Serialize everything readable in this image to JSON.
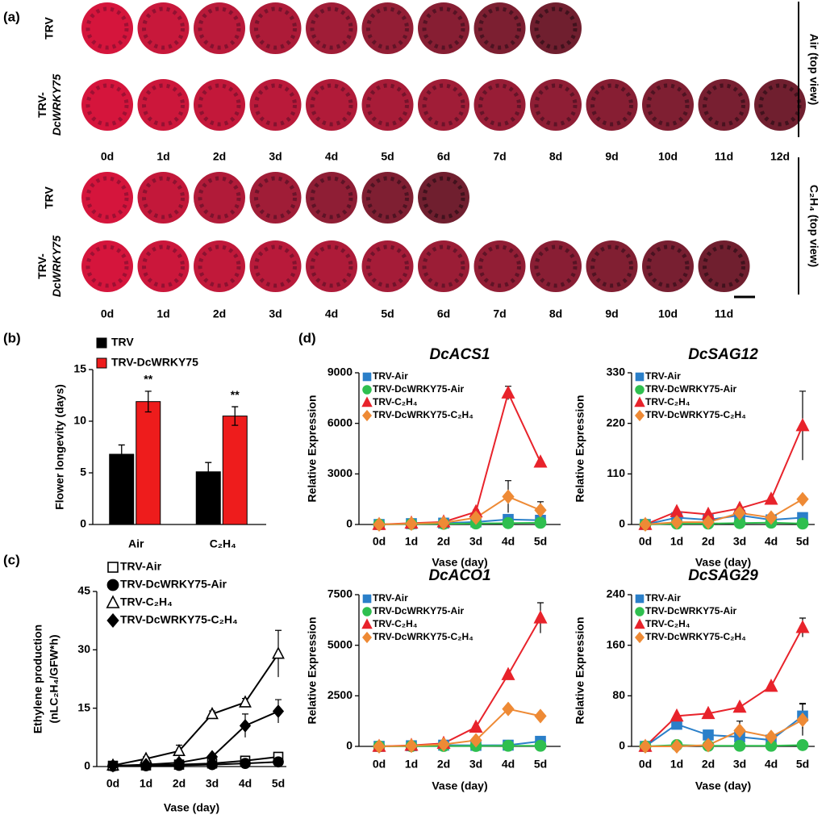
{
  "panel_a": {
    "label": "(a)",
    "groups": [
      {
        "condition": "Air (top view)",
        "days": [
          "0d",
          "1d",
          "2d",
          "3d",
          "4d",
          "5d",
          "6d",
          "7d",
          "8d",
          "9d",
          "10d",
          "11d",
          "12d"
        ],
        "rows": [
          {
            "name": "TRV",
            "photo_count": 9
          },
          {
            "name": "TRV-DcWRKY75",
            "photo_count": 13
          }
        ]
      },
      {
        "condition": "C₂H₄ (top view)",
        "days": [
          "0d",
          "1d",
          "2d",
          "3d",
          "4d",
          "5d",
          "6d",
          "7d",
          "8d",
          "9d",
          "10d",
          "11d"
        ],
        "rows": [
          {
            "name": "TRV",
            "photo_count": 7
          },
          {
            "name": "TRV-DcWRKY75",
            "photo_count": 12
          }
        ]
      }
    ]
  },
  "chart_data": [
    {
      "type": "bar",
      "panel_label": "(b)",
      "y_label": "Flower longevity (days)",
      "categories": [
        "Air",
        "C₂H₄"
      ],
      "ylim": [
        0,
        15
      ],
      "yticks": [
        0,
        5,
        10,
        15
      ],
      "series": [
        {
          "name": "TRV",
          "color": "#000000",
          "values": [
            6.8,
            5.1
          ],
          "errors": [
            0.9,
            0.9
          ]
        },
        {
          "name": "TRV-DcWRKY75",
          "color": "#ee1c1c",
          "values": [
            11.9,
            10.5
          ],
          "errors": [
            1.0,
            0.9
          ],
          "significance": [
            "**",
            "**"
          ]
        }
      ]
    },
    {
      "type": "line",
      "panel_label": "(c)",
      "y_label": [
        "Ethylene production",
        "(nLC₂H₄/GFW*h)"
      ],
      "x_label": "Vase (day)",
      "categories": [
        "0d",
        "1d",
        "2d",
        "3d",
        "4d",
        "5d"
      ],
      "ylim": [
        0,
        45
      ],
      "yticks": [
        0,
        15,
        30,
        45
      ],
      "series": [
        {
          "name": "TRV-Air",
          "color": "#000000",
          "marker": "square",
          "filled": false,
          "values": [
            0.2,
            0.3,
            0.5,
            0.8,
            1.5,
            2.5
          ],
          "errors": [
            0,
            0,
            0,
            0,
            0.3,
            0.3
          ]
        },
        {
          "name": "TRV-DcWRKY75-Air",
          "color": "#000000",
          "marker": "circle",
          "filled": true,
          "values": [
            0.1,
            0.2,
            0.3,
            0.5,
            0.8,
            1.2
          ],
          "errors": [
            0,
            0,
            0,
            0,
            0.2,
            0.2
          ]
        },
        {
          "name": "TRV-C₂H₄",
          "color": "#000000",
          "marker": "triangle",
          "filled": false,
          "values": [
            0.3,
            2,
            4,
            13.5,
            16.5,
            29
          ],
          "errors": [
            0.3,
            0.5,
            1.5,
            0.8,
            1,
            6
          ]
        },
        {
          "name": "TRV-DcWRKY75-C₂H₄",
          "color": "#000000",
          "marker": "diamond",
          "filled": true,
          "values": [
            0.2,
            0.5,
            1,
            2.5,
            10.5,
            14.2
          ],
          "errors": [
            0,
            0.3,
            0.5,
            0.5,
            3,
            3
          ]
        }
      ]
    },
    {
      "type": "line",
      "panel_label": "(d)",
      "title": "DcACS1",
      "y_label": "Relative Expression",
      "x_label": "Vase (day)",
      "categories": [
        "0d",
        "1d",
        "2d",
        "3d",
        "4d",
        "5d"
      ],
      "ylim": [
        0,
        9000
      ],
      "yticks": [
        0,
        3000,
        6000,
        9000
      ],
      "series": [
        {
          "name": "TRV-Air",
          "color": "#2a7fc9",
          "marker": "square",
          "filled": true,
          "values": [
            0,
            50,
            80,
            150,
            300,
            250
          ],
          "errors": [
            0,
            0,
            0,
            0,
            0,
            0
          ]
        },
        {
          "name": "TRV-DcWRKY75-Air",
          "color": "#2fbf4f",
          "marker": "circle",
          "filled": true,
          "values": [
            0,
            30,
            40,
            60,
            80,
            100
          ],
          "errors": [
            0,
            0,
            0,
            0,
            0,
            0
          ]
        },
        {
          "name": "TRV-C₂H₄",
          "color": "#e8232b",
          "marker": "triangle",
          "filled": true,
          "values": [
            0,
            80,
            150,
            750,
            7800,
            3700
          ],
          "errors": [
            0,
            0,
            0,
            100,
            400,
            0
          ]
        },
        {
          "name": "TRV-DcWRKY75-C₂H₄",
          "color": "#ee8a35",
          "marker": "diamond",
          "filled": true,
          "values": [
            0,
            50,
            100,
            400,
            1650,
            850
          ],
          "errors": [
            0,
            0,
            0,
            0,
            950,
            500
          ]
        }
      ]
    },
    {
      "type": "line",
      "title": "DcSAG12",
      "y_label": "Relative Expression",
      "x_label": "Vase (day)",
      "categories": [
        "0d",
        "1d",
        "2d",
        "3d",
        "4d",
        "5d"
      ],
      "ylim": [
        0,
        330
      ],
      "yticks": [
        0,
        110,
        220,
        330
      ],
      "series": [
        {
          "name": "TRV-Air",
          "color": "#2a7fc9",
          "marker": "square",
          "filled": true,
          "values": [
            0,
            15,
            10,
            20,
            10,
            15
          ],
          "errors": [
            0,
            0,
            0,
            0,
            0,
            0
          ]
        },
        {
          "name": "TRV-DcWRKY75-Air",
          "color": "#2fbf4f",
          "marker": "circle",
          "filled": true,
          "values": [
            0,
            2,
            2,
            3,
            4,
            2
          ],
          "errors": [
            0,
            0,
            0,
            0,
            0,
            0
          ]
        },
        {
          "name": "TRV-C₂H₄",
          "color": "#e8232b",
          "marker": "triangle",
          "filled": true,
          "values": [
            0,
            28,
            22,
            35,
            55,
            215
          ],
          "errors": [
            0,
            0,
            0,
            0,
            0,
            75
          ]
        },
        {
          "name": "TRV-DcWRKY75-C₂H₄",
          "color": "#ee8a35",
          "marker": "diamond",
          "filled": true,
          "values": [
            0,
            5,
            5,
            25,
            15,
            55
          ],
          "errors": [
            0,
            0,
            0,
            0,
            0,
            0
          ]
        }
      ]
    },
    {
      "type": "line",
      "title": "DcACO1",
      "y_label": "Relative Expression",
      "x_label": "Vase (day)",
      "categories": [
        "0d",
        "1d",
        "2d",
        "3d",
        "4d",
        "5d"
      ],
      "ylim": [
        0,
        7500
      ],
      "yticks": [
        0,
        2500,
        5000,
        7500
      ],
      "series": [
        {
          "name": "TRV-Air",
          "color": "#2a7fc9",
          "marker": "square",
          "filled": true,
          "values": [
            0,
            30,
            60,
            50,
            60,
            250
          ],
          "errors": [
            0,
            0,
            0,
            0,
            0,
            0
          ]
        },
        {
          "name": "TRV-DcWRKY75-Air",
          "color": "#2fbf4f",
          "marker": "circle",
          "filled": true,
          "values": [
            0,
            10,
            20,
            20,
            30,
            30
          ],
          "errors": [
            0,
            0,
            0,
            0,
            0,
            0
          ]
        },
        {
          "name": "TRV-C₂H₄",
          "color": "#e8232b",
          "marker": "triangle",
          "filled": true,
          "values": [
            0,
            50,
            150,
            950,
            3550,
            6350
          ],
          "errors": [
            0,
            0,
            0,
            0,
            0,
            750
          ]
        },
        {
          "name": "TRV-DcWRKY75-C₂H₄",
          "color": "#ee8a35",
          "marker": "diamond",
          "filled": true,
          "values": [
            0,
            30,
            100,
            300,
            1850,
            1500
          ],
          "errors": [
            0,
            0,
            0,
            0,
            0,
            0
          ]
        }
      ]
    },
    {
      "type": "line",
      "title": "DcSAG29",
      "y_label": "Relative Expression",
      "x_label": "Vase (day)",
      "categories": [
        "0d",
        "1d",
        "2d",
        "3d",
        "4d",
        "5d"
      ],
      "ylim": [
        0,
        240
      ],
      "yticks": [
        0,
        80,
        160,
        240
      ],
      "series": [
        {
          "name": "TRV-Air",
          "color": "#2a7fc9",
          "marker": "square",
          "filled": true,
          "values": [
            0,
            35,
            18,
            15,
            10,
            48
          ],
          "errors": [
            0,
            0,
            0,
            0,
            0,
            20
          ]
        },
        {
          "name": "TRV-DcWRKY75-Air",
          "color": "#2fbf4f",
          "marker": "circle",
          "filled": true,
          "values": [
            0,
            2,
            1,
            1,
            1,
            2
          ],
          "errors": [
            0,
            0,
            0,
            0,
            0,
            0
          ]
        },
        {
          "name": "TRV-C₂H₄",
          "color": "#e8232b",
          "marker": "triangle",
          "filled": true,
          "values": [
            0,
            48,
            52,
            62,
            95,
            188
          ],
          "errors": [
            0,
            0,
            0,
            0,
            0,
            15
          ]
        },
        {
          "name": "TRV-DcWRKY75-C₂H₄",
          "color": "#ee8a35",
          "marker": "diamond",
          "filled": true,
          "values": [
            0,
            0,
            2,
            25,
            15,
            42
          ],
          "errors": [
            0,
            0,
            0,
            15,
            0,
            25
          ]
        }
      ]
    }
  ]
}
